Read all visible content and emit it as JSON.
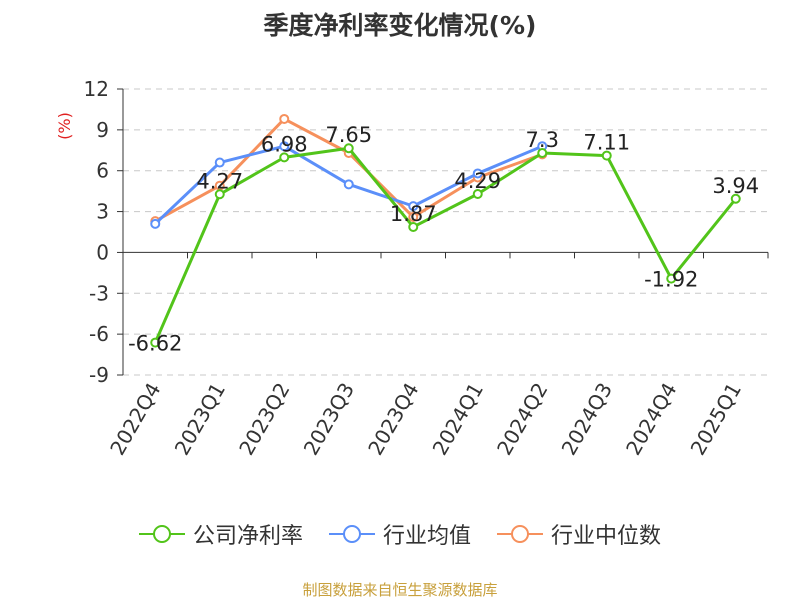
{
  "chart_data": {
    "type": "line",
    "title": "季度净利率变化情况(%)",
    "ylabel": "(%)",
    "categories": [
      "2022Q4",
      "2023Q1",
      "2023Q2",
      "2023Q3",
      "2023Q4",
      "2024Q1",
      "2024Q2",
      "2024Q3",
      "2024Q4",
      "2025Q1"
    ],
    "ylim": [
      -9,
      12
    ],
    "yticks": [
      -9,
      -6,
      -3,
      0,
      3,
      6,
      9,
      12
    ],
    "grid": true,
    "legend_position": "bottom",
    "series": [
      {
        "name": "公司净利率",
        "color": "#52c41a",
        "values": [
          -6.62,
          4.27,
          6.98,
          7.65,
          1.87,
          4.29,
          7.3,
          7.11,
          -1.92,
          3.94
        ],
        "labels": [
          "-6.62",
          "4.27",
          "6.98",
          "7.65",
          "1.87",
          "4.29",
          "7.3",
          "7.11",
          "-1.92",
          "3.94"
        ]
      },
      {
        "name": "行业均值",
        "color": "#5b8ff9",
        "values": [
          2.1,
          6.6,
          7.8,
          5.0,
          3.4,
          5.8,
          7.8,
          null,
          null,
          null
        ]
      },
      {
        "name": "行业中位数",
        "color": "#f6905c",
        "values": [
          2.3,
          4.9,
          9.8,
          7.3,
          2.6,
          5.5,
          7.2,
          null,
          null,
          null
        ]
      }
    ]
  },
  "source": "制图数据来自恒生聚源数据库"
}
